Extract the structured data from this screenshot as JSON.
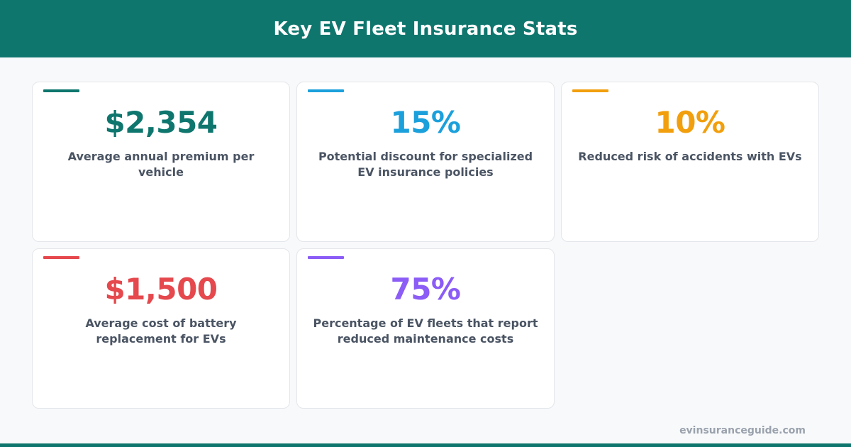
{
  "header": {
    "title": "Key EV Fleet Insurance Stats"
  },
  "cards": [
    {
      "value": "$2,354",
      "label": "Average annual premium per vehicle",
      "color": "#0f766e"
    },
    {
      "value": "15%",
      "label": "Potential discount for specialized EV insurance policies",
      "color": "#1ba0dc"
    },
    {
      "value": "10%",
      "label": "Reduced risk of accidents with EVs",
      "color": "#f29f0d"
    },
    {
      "value": "$1,500",
      "label": "Average cost of battery replacement for EVs",
      "color": "#e5484d"
    },
    {
      "value": "75%",
      "label": "Percentage of EV fleets that report reduced maintenance costs",
      "color": "#8b5cf6"
    }
  ],
  "footer": {
    "site": "evinsuranceguide.com"
  },
  "colors": {
    "header_bg": "#0f766e",
    "page_bg": "#f8f9fb"
  }
}
